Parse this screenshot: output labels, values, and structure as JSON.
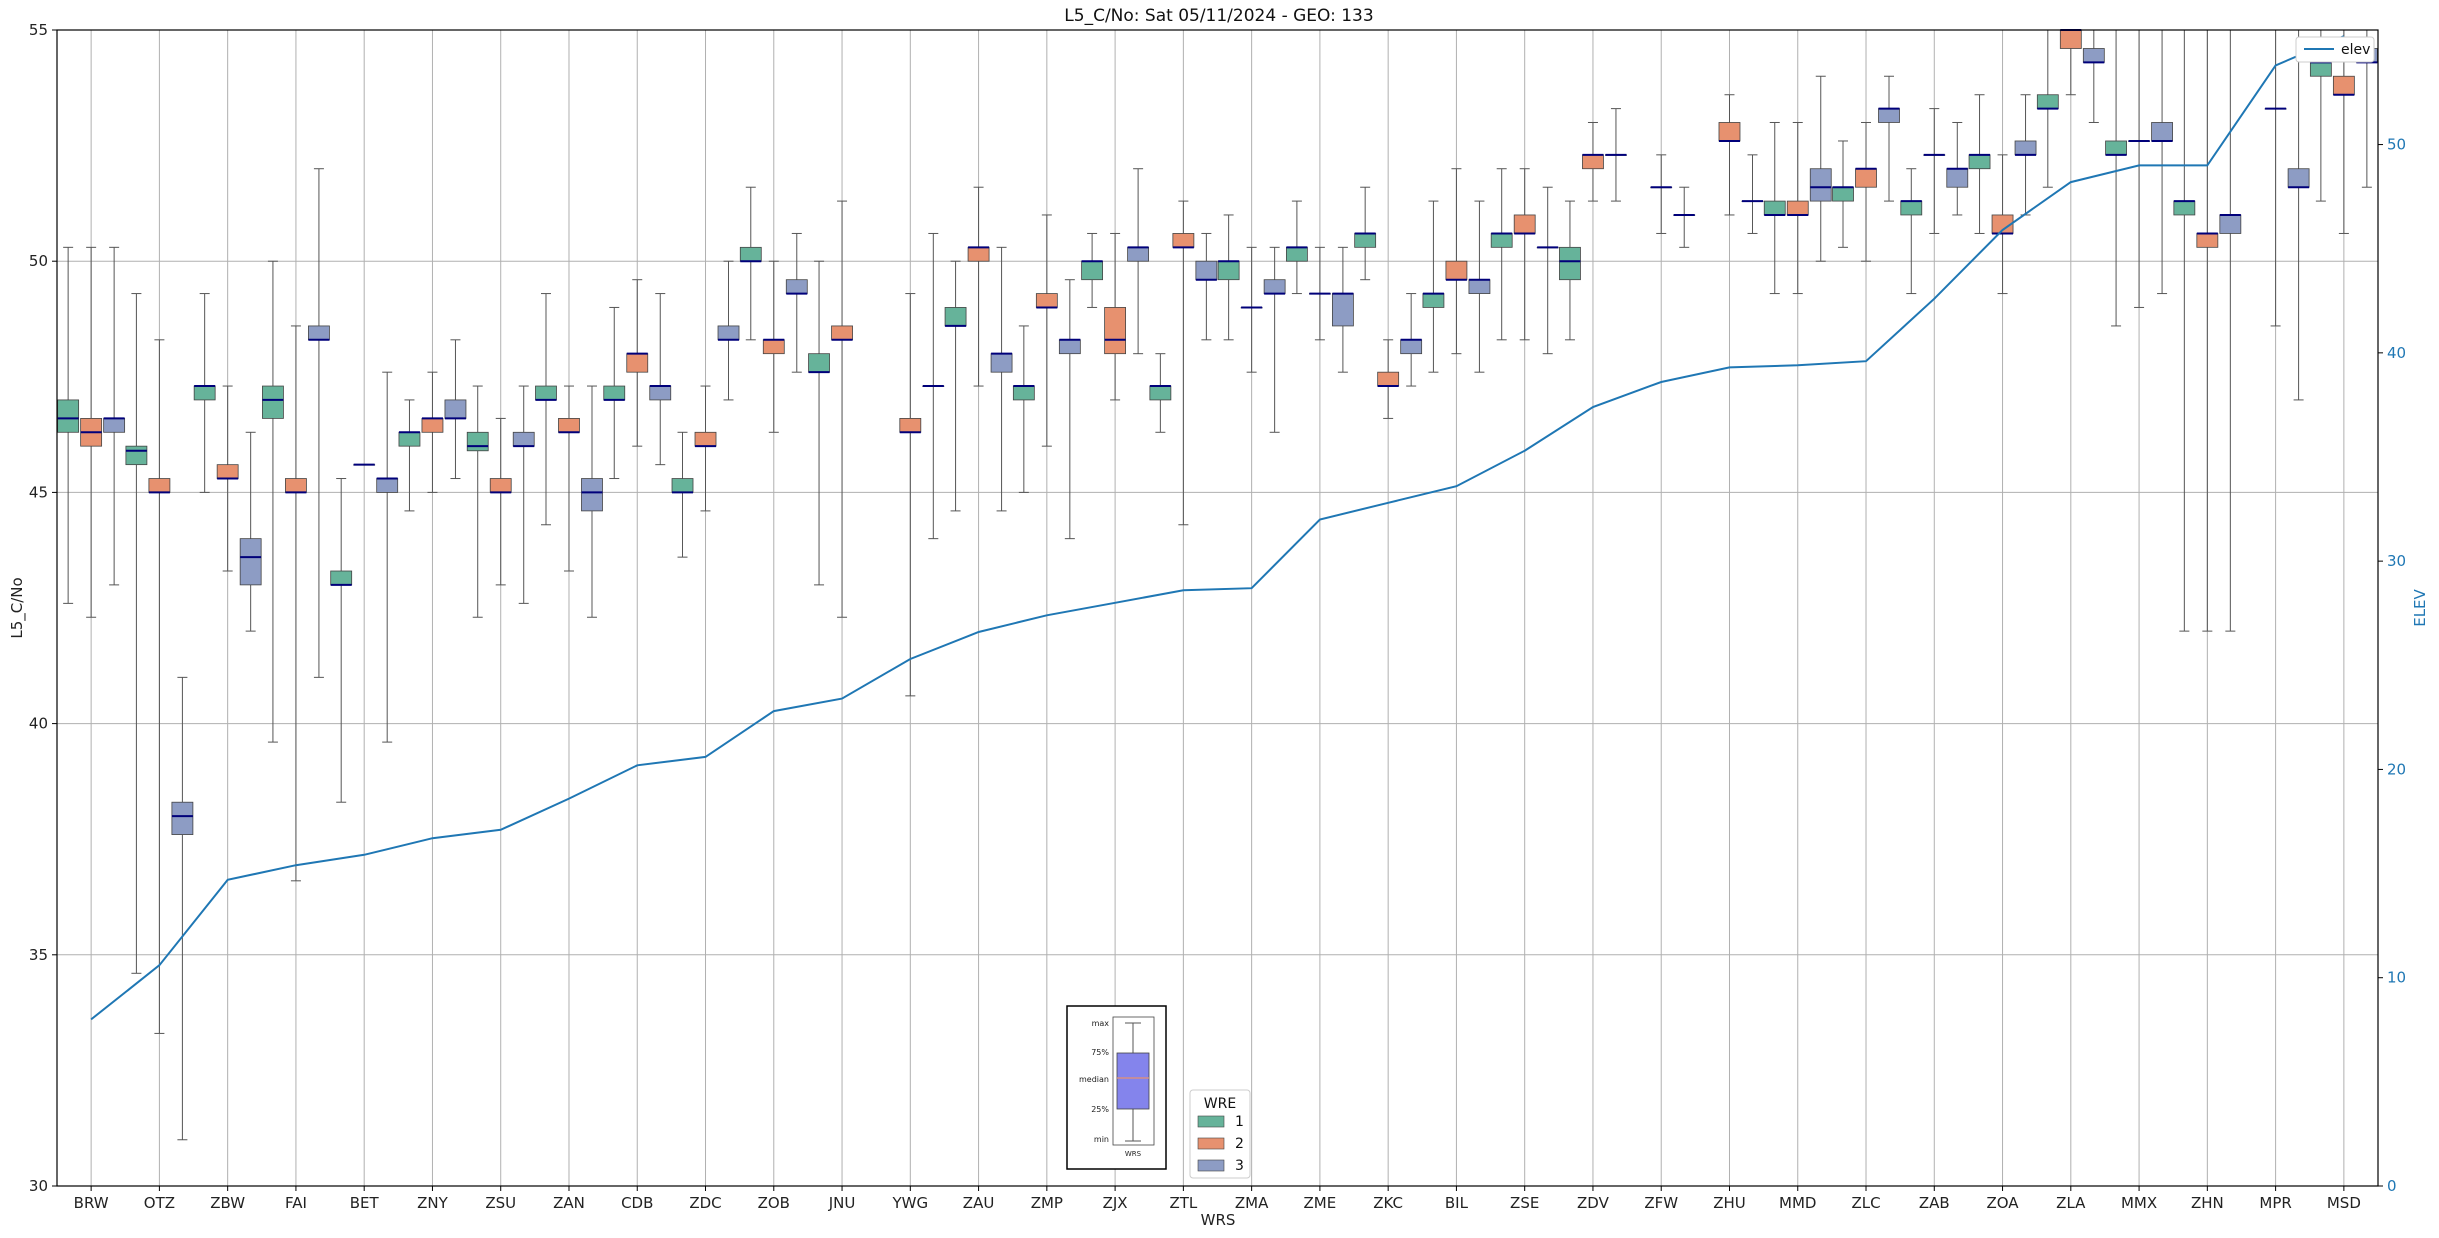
{
  "chart_data": {
    "type": "box",
    "title": "L5_C/No: Sat 05/11/2024 - GEO: 133",
    "xlabel": "WRS",
    "ylabel": "L5_C/No",
    "ylabel_right": "ELEV",
    "ylim": [
      30,
      55
    ],
    "ylim_right": [
      0,
      55.5
    ],
    "yticks": [
      30,
      35,
      40,
      45,
      50,
      55
    ],
    "yticks_right": [
      0,
      10,
      20,
      30,
      40,
      50
    ],
    "grid": true,
    "colors": {
      "1": "#66b39a",
      "2": "#e7916f",
      "3": "#8d9cc4",
      "elev": "#1f77b4",
      "median": "#00007a"
    },
    "categories": [
      "BRW",
      "OTZ",
      "ZBW",
      "FAI",
      "BET",
      "ZNY",
      "ZSU",
      "ZAN",
      "CDB",
      "ZDC",
      "ZOB",
      "JNU",
      "YWG",
      "ZAU",
      "ZMP",
      "ZJX",
      "ZTL",
      "ZMA",
      "ZME",
      "ZKC",
      "BIL",
      "ZSE",
      "ZDV",
      "ZFW",
      "ZHU",
      "MMD",
      "ZLC",
      "ZAB",
      "ZOA",
      "ZLA",
      "MMX",
      "ZHN",
      "MPR",
      "MSD"
    ],
    "series": [
      {
        "name": "1",
        "boxes": [
          [
            42.6,
            46.3,
            46.6,
            47.0,
            50.3
          ],
          [
            34.6,
            45.6,
            45.9,
            46.0,
            49.3
          ],
          [
            45.0,
            47.0,
            47.3,
            47.3,
            49.3
          ],
          [
            39.6,
            46.6,
            47.0,
            47.3,
            50.0
          ],
          [
            38.3,
            43.0,
            43.0,
            43.3,
            45.3
          ],
          [
            44.6,
            46.0,
            46.3,
            46.3,
            47.0
          ],
          [
            42.3,
            45.9,
            46.0,
            46.3,
            47.3
          ],
          [
            44.3,
            47.0,
            47.0,
            47.3,
            49.3
          ],
          [
            45.3,
            47.0,
            47.0,
            47.3,
            49.0
          ],
          [
            43.6,
            45.0,
            45.0,
            45.3,
            46.3
          ],
          [
            48.3,
            50.0,
            50.0,
            50.3,
            51.6
          ],
          [
            43.0,
            47.6,
            47.6,
            48.0,
            50.0
          ],
          [
            null,
            null,
            null,
            null,
            null
          ],
          [
            44.6,
            48.6,
            48.6,
            49.0,
            50.0
          ],
          [
            45.0,
            47.0,
            47.3,
            47.3,
            48.6
          ],
          [
            49.0,
            49.6,
            50.0,
            50.0,
            50.6
          ],
          [
            46.3,
            47.0,
            47.3,
            47.3,
            48.0
          ],
          [
            48.3,
            49.6,
            50.0,
            50.0,
            51.0
          ],
          [
            49.3,
            50.0,
            50.3,
            50.3,
            51.3
          ],
          [
            49.6,
            50.3,
            50.6,
            50.6,
            51.6
          ],
          [
            47.6,
            49.0,
            49.3,
            49.3,
            51.3
          ],
          [
            48.3,
            50.3,
            50.6,
            50.6,
            52.0
          ],
          [
            48.3,
            49.6,
            50.0,
            50.3,
            51.3
          ],
          [
            null,
            null,
            null,
            null,
            null
          ],
          [
            null,
            null,
            null,
            null,
            null
          ],
          [
            49.3,
            51.0,
            51.0,
            51.3,
            53.0
          ],
          [
            50.3,
            51.3,
            51.6,
            51.6,
            52.6
          ],
          [
            49.3,
            51.0,
            51.3,
            51.3,
            52.0
          ],
          [
            50.6,
            52.0,
            52.3,
            52.3,
            53.6
          ],
          [
            51.6,
            53.3,
            53.3,
            53.6,
            55.0
          ],
          [
            48.6,
            52.3,
            52.3,
            52.6,
            55.0
          ],
          [
            42.0,
            51.0,
            51.3,
            51.3,
            55.0
          ],
          [
            null,
            null,
            null,
            null,
            null
          ],
          [
            51.3,
            54.0,
            54.3,
            54.3,
            55.0
          ]
        ]
      },
      {
        "name": "2",
        "boxes": [
          [
            42.3,
            46.0,
            46.3,
            46.6,
            50.3
          ],
          [
            33.3,
            45.0,
            45.0,
            45.3,
            48.3
          ],
          [
            43.3,
            45.3,
            45.3,
            45.6,
            47.3
          ],
          [
            36.6,
            45.0,
            45.0,
            45.3,
            48.6
          ],
          [
            null,
            45.6,
            45.6,
            45.6,
            null
          ],
          [
            45.0,
            46.3,
            46.6,
            46.6,
            47.6
          ],
          [
            43.0,
            45.0,
            45.0,
            45.3,
            46.6
          ],
          [
            43.3,
            46.3,
            46.3,
            46.6,
            47.3
          ],
          [
            46.0,
            47.6,
            48.0,
            48.0,
            49.6
          ],
          [
            44.6,
            46.0,
            46.0,
            46.3,
            47.3
          ],
          [
            46.3,
            48.0,
            48.3,
            48.3,
            50.0
          ],
          [
            42.3,
            48.3,
            48.3,
            48.6,
            51.3
          ],
          [
            40.6,
            46.3,
            46.3,
            46.6,
            49.3
          ],
          [
            47.3,
            50.0,
            50.3,
            50.3,
            51.6
          ],
          [
            46.0,
            49.0,
            49.0,
            49.3,
            51.0
          ],
          [
            47.0,
            48.0,
            48.3,
            49.0,
            50.6
          ],
          [
            44.3,
            50.3,
            50.3,
            50.6,
            51.3
          ],
          [
            47.6,
            49.0,
            49.0,
            49.0,
            50.3
          ],
          [
            48.3,
            49.3,
            49.3,
            49.3,
            50.3
          ],
          [
            46.6,
            47.3,
            47.3,
            47.6,
            48.3
          ],
          [
            48.0,
            49.6,
            49.6,
            50.0,
            52.0
          ],
          [
            48.3,
            50.6,
            50.6,
            51.0,
            52.0
          ],
          [
            51.3,
            52.0,
            52.3,
            52.3,
            53.0
          ],
          [
            50.6,
            51.6,
            51.6,
            51.6,
            52.3
          ],
          [
            51.0,
            52.6,
            52.6,
            53.0,
            53.6
          ],
          [
            49.3,
            51.0,
            51.0,
            51.3,
            53.0
          ],
          [
            50.0,
            51.6,
            52.0,
            52.0,
            53.0
          ],
          [
            50.6,
            52.3,
            52.3,
            52.3,
            53.3
          ],
          [
            49.3,
            50.6,
            50.6,
            51.0,
            52.3
          ],
          [
            53.6,
            54.6,
            55.0,
            55.0,
            55.0
          ],
          [
            49.0,
            52.6,
            52.6,
            52.6,
            55.0
          ],
          [
            42.0,
            50.3,
            50.6,
            50.6,
            55.0
          ],
          [
            48.6,
            53.3,
            53.3,
            53.3,
            55.0
          ],
          [
            50.6,
            53.6,
            53.6,
            54.0,
            55.0
          ]
        ]
      },
      {
        "name": "3",
        "boxes": [
          [
            43.0,
            46.3,
            46.6,
            46.6,
            50.3
          ],
          [
            31.0,
            37.6,
            38.0,
            38.3,
            41.0
          ],
          [
            42.0,
            43.0,
            43.6,
            44.0,
            46.3
          ],
          [
            41.0,
            48.3,
            48.3,
            48.6,
            52.0
          ],
          [
            39.6,
            45.0,
            45.3,
            45.3,
            47.6
          ],
          [
            45.3,
            46.6,
            46.6,
            47.0,
            48.3
          ],
          [
            42.6,
            46.0,
            46.0,
            46.3,
            47.3
          ],
          [
            42.3,
            44.6,
            45.0,
            45.3,
            47.3
          ],
          [
            45.6,
            47.0,
            47.3,
            47.3,
            49.3
          ],
          [
            47.0,
            48.3,
            48.3,
            48.6,
            50.0
          ],
          [
            47.6,
            49.3,
            49.3,
            49.6,
            50.6
          ],
          [
            null,
            null,
            null,
            null,
            null
          ],
          [
            44.0,
            47.3,
            47.3,
            47.3,
            50.6
          ],
          [
            44.6,
            47.6,
            48.0,
            48.0,
            50.3
          ],
          [
            44.0,
            48.0,
            48.3,
            48.3,
            49.6
          ],
          [
            48.0,
            50.0,
            50.3,
            50.3,
            52.0
          ],
          [
            48.3,
            49.6,
            49.6,
            50.0,
            50.6
          ],
          [
            46.3,
            49.3,
            49.3,
            49.6,
            50.3
          ],
          [
            47.6,
            48.6,
            49.3,
            49.3,
            50.3
          ],
          [
            47.3,
            48.0,
            48.3,
            48.3,
            49.3
          ],
          [
            47.6,
            49.3,
            49.6,
            49.6,
            51.3
          ],
          [
            48.0,
            50.3,
            50.3,
            50.3,
            51.6
          ],
          [
            51.3,
            52.3,
            52.3,
            52.3,
            53.3
          ],
          [
            50.3,
            51.0,
            51.0,
            51.0,
            51.6
          ],
          [
            50.6,
            51.3,
            51.3,
            51.3,
            52.3
          ],
          [
            50.0,
            51.3,
            51.6,
            52.0,
            54.0
          ],
          [
            51.3,
            53.0,
            53.3,
            53.3,
            54.0
          ],
          [
            51.0,
            51.6,
            52.0,
            52.0,
            53.0
          ],
          [
            51.0,
            52.3,
            52.3,
            52.6,
            53.6
          ],
          [
            53.0,
            54.3,
            54.3,
            54.6,
            55.0
          ],
          [
            49.3,
            52.6,
            52.6,
            53.0,
            55.0
          ],
          [
            42.0,
            50.6,
            51.0,
            51.0,
            55.0
          ],
          [
            47.0,
            51.6,
            51.6,
            52.0,
            55.0
          ],
          [
            51.6,
            54.3,
            54.3,
            54.6,
            55.0
          ]
        ]
      },
      {
        "name": "elev",
        "type": "line",
        "axis": "right",
        "values": [
          8.0,
          10.6,
          14.7,
          15.4,
          15.9,
          16.7,
          17.1,
          18.6,
          20.2,
          20.6,
          22.8,
          23.4,
          25.3,
          26.6,
          27.4,
          28.0,
          28.6,
          28.7,
          32.0,
          32.8,
          33.6,
          35.3,
          37.4,
          38.6,
          39.3,
          39.4,
          39.6,
          42.6,
          45.9,
          48.2,
          49.0,
          49.0,
          53.8,
          55.2
        ]
      }
    ],
    "legend": {
      "title": "WRE",
      "entries": [
        "1",
        "2",
        "3"
      ],
      "line_entry": "elev",
      "placement": "lower-center",
      "line_placement": "top-right"
    },
    "key": {
      "labels": [
        "max",
        "75%",
        "median",
        "25%",
        "min"
      ],
      "xlabel": "WRS"
    }
  }
}
